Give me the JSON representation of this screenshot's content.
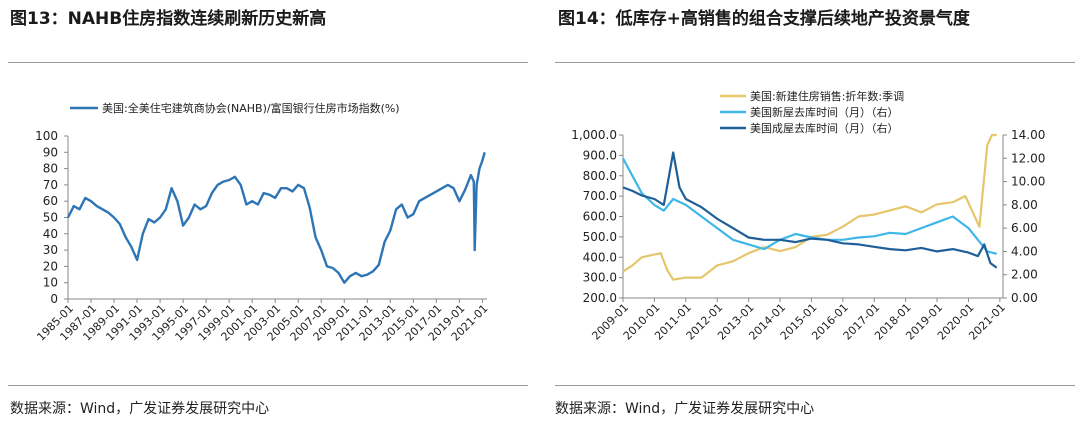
{
  "left": {
    "title": "图13：NAHB住房指数连续刷新历史新高",
    "source": "数据来源：Wind，广发证券发展研究中心",
    "chart_data": {
      "type": "line",
      "series": [
        {
          "name": "美国:全美住宅建筑商协会(NAHB)/富国银行住房市场指数(%)",
          "color": "#2E75B6",
          "x": [
            1985.0,
            1985.5,
            1986.0,
            1986.5,
            1987.0,
            1987.5,
            1988.0,
            1988.5,
            1989.0,
            1989.5,
            1990.0,
            1990.5,
            1991.0,
            1991.5,
            1992.0,
            1992.5,
            1993.0,
            1993.5,
            1994.0,
            1994.5,
            1995.0,
            1995.5,
            1996.0,
            1996.5,
            1997.0,
            1997.5,
            1998.0,
            1998.5,
            1999.0,
            1999.5,
            2000.0,
            2000.5,
            2001.0,
            2001.5,
            2002.0,
            2002.5,
            2003.0,
            2003.5,
            2004.0,
            2004.5,
            2005.0,
            2005.5,
            2006.0,
            2006.5,
            2007.0,
            2007.5,
            2008.0,
            2008.5,
            2009.0,
            2009.5,
            2010.0,
            2010.5,
            2011.0,
            2011.5,
            2012.0,
            2012.5,
            2013.0,
            2013.5,
            2014.0,
            2014.5,
            2015.0,
            2015.5,
            2016.0,
            2016.5,
            2017.0,
            2017.5,
            2018.0,
            2018.5,
            2019.0,
            2019.5,
            2020.0,
            2020.25,
            2020.33,
            2020.5,
            2020.75,
            2021.0,
            2021.2
          ],
          "values": [
            50,
            57,
            55,
            62,
            60,
            57,
            55,
            53,
            50,
            46,
            38,
            32,
            24,
            40,
            49,
            47,
            50,
            55,
            68,
            60,
            45,
            50,
            58,
            55,
            57,
            65,
            70,
            72,
            73,
            75,
            70,
            58,
            60,
            58,
            65,
            64,
            62,
            68,
            68,
            66,
            70,
            68,
            56,
            38,
            30,
            20,
            19,
            16,
            10,
            14,
            16,
            14,
            15,
            17,
            21,
            35,
            42,
            55,
            58,
            50,
            52,
            60,
            62,
            64,
            66,
            68,
            70,
            68,
            60,
            67,
            76,
            72,
            30,
            70,
            80,
            85,
            90
          ],
          "legend": "top-left"
        }
      ],
      "xlabels": [
        "1985-01",
        "1987-01",
        "1989-01",
        "1991-01",
        "1993-01",
        "1995-01",
        "1997-01",
        "1999-01",
        "2001-01",
        "2003-01",
        "2005-01",
        "2007-01",
        "2009-01",
        "2011-01",
        "2013-01",
        "2015-01",
        "2017-01",
        "2019-01",
        "2021-01"
      ],
      "xlim": [
        1985,
        2021.4
      ],
      "ylim": [
        0,
        100
      ],
      "yticks": [
        "0",
        "10",
        "20",
        "30",
        "40",
        "50",
        "60",
        "70",
        "80",
        "90",
        "100"
      ],
      "grid": false
    }
  },
  "right": {
    "title": "图14：低库存+高销售的组合支撑后续地产投资景气度",
    "source": "数据来源：Wind，广发证券发展研究中心",
    "chart_data": {
      "type": "line",
      "xlabels": [
        "2009-01",
        "2010-01",
        "2011-01",
        "2012-01",
        "2013-01",
        "2014-01",
        "2015-01",
        "2016-01",
        "2017-01",
        "2018-01",
        "2019-01",
        "2020-01",
        "2021-01"
      ],
      "xlim": [
        2009,
        2021.1
      ],
      "ylim_left": [
        200,
        1000
      ],
      "yticks_left": [
        "200.0",
        "300.0",
        "400.0",
        "500.0",
        "600.0",
        "700.0",
        "800.0",
        "900.0",
        "1,000.0"
      ],
      "ylim_right": [
        0,
        14
      ],
      "yticks_right": [
        "0.00",
        "2.00",
        "4.00",
        "6.00",
        "8.00",
        "10.00",
        "12.00",
        "14.00"
      ],
      "grid": false,
      "legend": "top-left",
      "series": [
        {
          "name": "美国:新建住房销售:折年数:季调",
          "axis": "left",
          "color": "#E6C66B",
          "x": [
            2009.0,
            2009.3,
            2009.6,
            2009.9,
            2010.2,
            2010.4,
            2010.6,
            2011.0,
            2011.5,
            2012.0,
            2012.5,
            2013.0,
            2013.5,
            2014.0,
            2014.5,
            2015.0,
            2015.5,
            2016.0,
            2016.5,
            2017.0,
            2017.5,
            2018.0,
            2018.5,
            2019.0,
            2019.5,
            2019.9,
            2020.2,
            2020.35,
            2020.6,
            2020.75,
            2020.9
          ],
          "values": [
            330,
            360,
            400,
            410,
            420,
            340,
            290,
            300,
            300,
            360,
            380,
            420,
            450,
            430,
            450,
            500,
            510,
            550,
            600,
            610,
            630,
            650,
            620,
            660,
            670,
            700,
            600,
            550,
            950,
            1000,
            1000
          ]
        },
        {
          "name": "美国新屋去库时间（月）（右）",
          "axis": "right",
          "color": "#3FB6E8",
          "x": [
            2009.0,
            2009.3,
            2009.6,
            2010.0,
            2010.3,
            2010.6,
            2011.0,
            2011.5,
            2012.0,
            2012.5,
            2013.0,
            2013.5,
            2014.0,
            2014.5,
            2015.0,
            2015.5,
            2016.0,
            2016.5,
            2017.0,
            2017.5,
            2018.0,
            2018.5,
            2019.0,
            2019.5,
            2020.0,
            2020.3,
            2020.6,
            2020.9
          ],
          "values": [
            12,
            10.5,
            9,
            8,
            7.5,
            8.5,
            8,
            7,
            6,
            5,
            4.6,
            4.2,
            5,
            5.5,
            5.2,
            5,
            5,
            5.2,
            5.3,
            5.6,
            5.5,
            6,
            6.5,
            7,
            6,
            5,
            4,
            3.8
          ]
        },
        {
          "name": "美国成屋去库时间（月）（右）",
          "axis": "right",
          "color": "#1F5F99",
          "x": [
            2009.0,
            2009.3,
            2009.6,
            2010.0,
            2010.3,
            2010.6,
            2010.8,
            2011.0,
            2011.5,
            2012.0,
            2012.5,
            2013.0,
            2013.5,
            2014.0,
            2014.5,
            2015.0,
            2015.5,
            2016.0,
            2016.5,
            2017.0,
            2017.5,
            2018.0,
            2018.5,
            2019.0,
            2019.5,
            2020.0,
            2020.3,
            2020.5,
            2020.7,
            2020.9
          ],
          "values": [
            9.5,
            9.2,
            8.8,
            8.5,
            8,
            12.5,
            9.5,
            8.5,
            7.8,
            6.8,
            6,
            5.2,
            5,
            5,
            4.8,
            5.1,
            5,
            4.7,
            4.6,
            4.4,
            4.2,
            4.1,
            4.3,
            4.0,
            4.2,
            3.9,
            3.6,
            4.6,
            3.0,
            2.6
          ]
        }
      ]
    }
  }
}
